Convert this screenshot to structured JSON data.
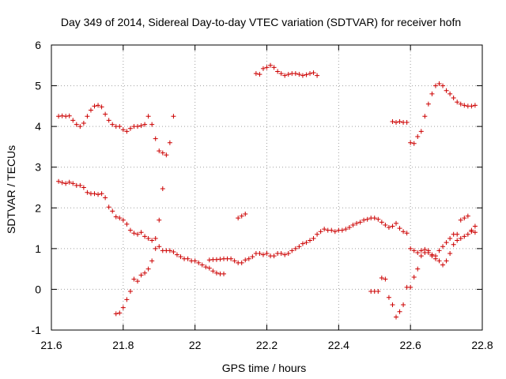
{
  "chart_data": {
    "type": "scatter",
    "title": "Day 349 of 2014, Sidereal Day-to-day VTEC variation (SDTVAR) for receiver hofn",
    "xlabel": "GPS time / hours",
    "ylabel": "SDTVAR / TECUs",
    "xlim": [
      21.6,
      22.8
    ],
    "ylim": [
      -1,
      6
    ],
    "xticks": [
      "21.6",
      "21.8",
      "22",
      "22.2",
      "22.4",
      "22.6",
      "22.8"
    ],
    "yticks": [
      "-1",
      "0",
      "1",
      "2",
      "3",
      "4",
      "5",
      "6"
    ],
    "grid": true,
    "marker": "+",
    "color": "#cc0000",
    "series": [
      {
        "name": "upper",
        "points": [
          [
            21.62,
            4.25
          ],
          [
            21.63,
            4.26
          ],
          [
            21.64,
            4.25
          ],
          [
            21.65,
            4.26
          ],
          [
            21.66,
            4.15
          ],
          [
            21.67,
            4.05
          ],
          [
            21.68,
            4.0
          ],
          [
            21.69,
            4.08
          ],
          [
            21.7,
            4.25
          ],
          [
            21.71,
            4.4
          ],
          [
            21.72,
            4.5
          ],
          [
            21.73,
            4.52
          ],
          [
            21.74,
            4.48
          ],
          [
            21.75,
            4.3
          ],
          [
            21.76,
            4.15
          ],
          [
            21.77,
            4.05
          ],
          [
            21.78,
            4.0
          ],
          [
            21.79,
            4.0
          ],
          [
            21.8,
            3.92
          ],
          [
            21.81,
            3.88
          ],
          [
            21.82,
            3.95
          ],
          [
            21.83,
            4.0
          ],
          [
            21.84,
            4.0
          ],
          [
            21.85,
            4.02
          ],
          [
            21.86,
            4.05
          ],
          [
            21.87,
            4.25
          ],
          [
            21.88,
            4.05
          ],
          [
            21.89,
            3.7
          ],
          [
            21.9,
            3.4
          ],
          [
            21.91,
            3.35
          ],
          [
            21.92,
            3.3
          ],
          [
            21.93,
            3.6
          ],
          [
            21.94,
            4.25
          ],
          [
            22.17,
            5.3
          ],
          [
            22.18,
            5.28
          ],
          [
            22.19,
            5.42
          ],
          [
            22.2,
            5.45
          ],
          [
            22.21,
            5.5
          ],
          [
            22.22,
            5.45
          ],
          [
            22.23,
            5.35
          ],
          [
            22.24,
            5.3
          ],
          [
            22.25,
            5.25
          ],
          [
            22.26,
            5.28
          ],
          [
            22.27,
            5.3
          ],
          [
            22.28,
            5.3
          ],
          [
            22.29,
            5.28
          ],
          [
            22.3,
            5.25
          ],
          [
            22.31,
            5.27
          ],
          [
            22.32,
            5.3
          ],
          [
            22.33,
            5.32
          ],
          [
            22.34,
            5.25
          ],
          [
            22.55,
            4.12
          ],
          [
            22.56,
            4.1
          ],
          [
            22.57,
            4.12
          ],
          [
            22.58,
            4.1
          ],
          [
            22.59,
            4.1
          ],
          [
            22.6,
            3.6
          ],
          [
            22.61,
            3.58
          ],
          [
            22.62,
            3.75
          ],
          [
            22.63,
            3.88
          ],
          [
            22.64,
            4.25
          ],
          [
            22.65,
            4.55
          ],
          [
            22.66,
            4.8
          ],
          [
            22.67,
            5.0
          ],
          [
            22.68,
            5.05
          ],
          [
            22.69,
            5.0
          ],
          [
            22.7,
            4.88
          ],
          [
            22.71,
            4.8
          ],
          [
            22.72,
            4.7
          ],
          [
            22.73,
            4.6
          ],
          [
            22.74,
            4.55
          ],
          [
            22.75,
            4.52
          ],
          [
            22.76,
            4.5
          ],
          [
            22.77,
            4.5
          ],
          [
            22.78,
            4.52
          ]
        ]
      },
      {
        "name": "lower",
        "points": [
          [
            21.62,
            2.65
          ],
          [
            21.63,
            2.62
          ],
          [
            21.64,
            2.6
          ],
          [
            21.65,
            2.63
          ],
          [
            21.66,
            2.6
          ],
          [
            21.67,
            2.55
          ],
          [
            21.68,
            2.55
          ],
          [
            21.69,
            2.5
          ],
          [
            21.7,
            2.38
          ],
          [
            21.71,
            2.35
          ],
          [
            21.72,
            2.35
          ],
          [
            21.73,
            2.33
          ],
          [
            21.74,
            2.35
          ],
          [
            21.75,
            2.25
          ],
          [
            21.76,
            2.02
          ],
          [
            21.77,
            1.92
          ],
          [
            21.78,
            1.78
          ],
          [
            21.79,
            1.75
          ],
          [
            21.8,
            1.7
          ],
          [
            21.81,
            1.6
          ],
          [
            21.82,
            1.45
          ],
          [
            21.83,
            1.38
          ],
          [
            21.84,
            1.35
          ],
          [
            21.85,
            1.4
          ],
          [
            21.86,
            1.3
          ],
          [
            21.87,
            1.25
          ],
          [
            21.88,
            1.2
          ],
          [
            21.89,
            1.25
          ],
          [
            21.9,
            1.05
          ],
          [
            21.91,
            0.95
          ],
          [
            21.92,
            0.95
          ],
          [
            21.93,
            0.95
          ],
          [
            21.94,
            0.92
          ],
          [
            21.95,
            0.85
          ],
          [
            21.96,
            0.8
          ],
          [
            21.97,
            0.75
          ],
          [
            21.98,
            0.75
          ],
          [
            21.99,
            0.7
          ],
          [
            22.0,
            0.7
          ],
          [
            22.01,
            0.65
          ],
          [
            22.02,
            0.6
          ],
          [
            22.03,
            0.55
          ],
          [
            22.04,
            0.52
          ],
          [
            22.05,
            0.45
          ],
          [
            22.06,
            0.4
          ],
          [
            22.07,
            0.38
          ],
          [
            22.08,
            0.38
          ],
          [
            22.04,
            0.72
          ],
          [
            22.05,
            0.73
          ],
          [
            22.06,
            0.73
          ],
          [
            22.07,
            0.74
          ],
          [
            22.08,
            0.75
          ],
          [
            22.09,
            0.75
          ],
          [
            22.1,
            0.75
          ],
          [
            22.11,
            0.7
          ],
          [
            22.12,
            0.65
          ],
          [
            22.13,
            0.65
          ],
          [
            22.14,
            0.72
          ],
          [
            22.15,
            0.75
          ],
          [
            22.16,
            0.8
          ],
          [
            22.17,
            0.88
          ],
          [
            22.18,
            0.88
          ],
          [
            22.19,
            0.85
          ],
          [
            22.2,
            0.88
          ],
          [
            22.21,
            0.82
          ],
          [
            22.22,
            0.82
          ],
          [
            22.23,
            0.88
          ],
          [
            22.24,
            0.88
          ],
          [
            22.25,
            0.85
          ],
          [
            22.26,
            0.88
          ],
          [
            22.27,
            0.95
          ],
          [
            22.28,
            1.0
          ],
          [
            22.29,
            1.05
          ],
          [
            22.3,
            1.12
          ],
          [
            22.31,
            1.15
          ],
          [
            22.32,
            1.2
          ],
          [
            22.33,
            1.25
          ],
          [
            22.34,
            1.35
          ],
          [
            22.35,
            1.42
          ],
          [
            22.36,
            1.48
          ],
          [
            22.37,
            1.45
          ],
          [
            22.38,
            1.45
          ],
          [
            22.39,
            1.42
          ],
          [
            22.4,
            1.45
          ],
          [
            22.41,
            1.45
          ],
          [
            22.42,
            1.48
          ],
          [
            22.43,
            1.52
          ],
          [
            22.44,
            1.58
          ],
          [
            22.45,
            1.62
          ],
          [
            22.46,
            1.65
          ],
          [
            22.47,
            1.7
          ],
          [
            22.48,
            1.72
          ],
          [
            22.49,
            1.75
          ],
          [
            22.5,
            1.75
          ],
          [
            22.51,
            1.72
          ],
          [
            22.52,
            1.65
          ],
          [
            22.53,
            1.58
          ],
          [
            22.54,
            1.52
          ],
          [
            22.55,
            1.55
          ],
          [
            22.56,
            1.62
          ],
          [
            22.57,
            1.5
          ],
          [
            22.58,
            1.42
          ],
          [
            22.59,
            1.38
          ],
          [
            22.6,
            1.0
          ],
          [
            22.61,
            0.95
          ],
          [
            22.62,
            0.9
          ],
          [
            22.63,
            0.95
          ],
          [
            22.64,
            0.98
          ],
          [
            22.65,
            0.9
          ],
          [
            22.66,
            0.82
          ],
          [
            22.67,
            0.75
          ],
          [
            22.68,
            0.7
          ],
          [
            22.69,
            0.6
          ],
          [
            22.7,
            0.7
          ],
          [
            22.71,
            0.88
          ],
          [
            22.72,
            1.1
          ],
          [
            22.73,
            1.2
          ],
          [
            22.74,
            1.25
          ],
          [
            22.75,
            1.3
          ],
          [
            22.76,
            1.35
          ],
          [
            22.77,
            1.45
          ],
          [
            22.78,
            1.55
          ]
        ]
      },
      {
        "name": "scattered",
        "points": [
          [
            21.78,
            -0.6
          ],
          [
            21.79,
            -0.58
          ],
          [
            21.8,
            -0.45
          ],
          [
            21.81,
            -0.25
          ],
          [
            21.82,
            -0.05
          ],
          [
            21.83,
            0.25
          ],
          [
            21.84,
            0.2
          ],
          [
            21.85,
            0.35
          ],
          [
            21.86,
            0.4
          ],
          [
            21.87,
            0.5
          ],
          [
            21.88,
            0.7
          ],
          [
            21.89,
            1.0
          ],
          [
            21.9,
            1.7
          ],
          [
            21.91,
            2.47
          ],
          [
            22.12,
            1.75
          ],
          [
            22.13,
            1.8
          ],
          [
            22.14,
            1.85
          ],
          [
            22.49,
            -0.05
          ],
          [
            22.5,
            -0.05
          ],
          [
            22.51,
            -0.05
          ],
          [
            22.52,
            0.28
          ],
          [
            22.53,
            0.25
          ],
          [
            22.54,
            -0.2
          ],
          [
            22.55,
            -0.38
          ],
          [
            22.56,
            -0.68
          ],
          [
            22.57,
            -0.55
          ],
          [
            22.58,
            -0.38
          ],
          [
            22.59,
            0.05
          ],
          [
            22.6,
            0.05
          ],
          [
            22.61,
            0.3
          ],
          [
            22.62,
            0.5
          ],
          [
            22.63,
            0.82
          ],
          [
            22.64,
            0.9
          ],
          [
            22.65,
            0.95
          ],
          [
            22.66,
            0.85
          ],
          [
            22.67,
            0.82
          ],
          [
            22.68,
            0.95
          ],
          [
            22.69,
            1.05
          ],
          [
            22.7,
            1.15
          ],
          [
            22.71,
            1.25
          ],
          [
            22.72,
            1.35
          ],
          [
            22.73,
            1.35
          ],
          [
            22.74,
            1.7
          ],
          [
            22.75,
            1.75
          ],
          [
            22.76,
            1.8
          ],
          [
            22.77,
            1.42
          ],
          [
            22.78,
            1.4
          ]
        ]
      }
    ]
  }
}
